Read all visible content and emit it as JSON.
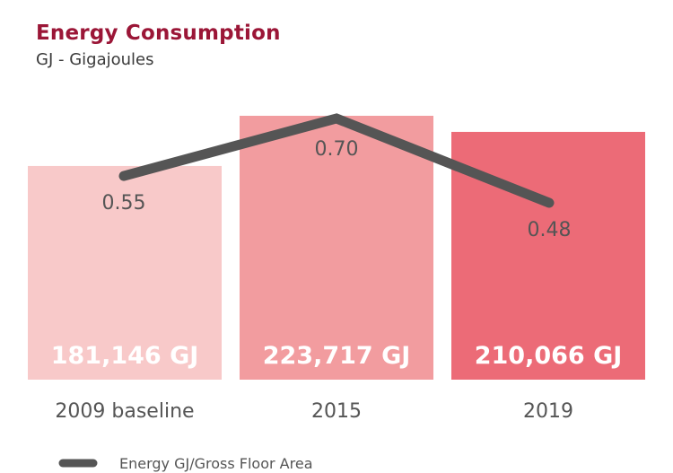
{
  "chart_data": {
    "type": "bar",
    "title": "Energy Consumption",
    "subtitle": "GJ - Gigajoules",
    "xlabel": "",
    "ylabel": "",
    "categories": [
      "2009 baseline",
      "2015",
      "2019"
    ],
    "series": [
      {
        "name": "Energy Consumption (GJ)",
        "kind": "bar",
        "values": [
          181146,
          223717,
          210066
        ],
        "labels": [
          "181,146 GJ",
          "223,717 GJ",
          "210,066 GJ"
        ],
        "colors": [
          "#f8c9c9",
          "#f29c9f",
          "#ec6b77"
        ]
      },
      {
        "name": "Energy GJ/Gross Floor Area",
        "kind": "line",
        "values": [
          0.55,
          0.7,
          0.48
        ],
        "labels": [
          "0.55",
          "0.70",
          "0.48"
        ],
        "color": "#555555"
      }
    ],
    "grid": false,
    "legend": {
      "position": "bottom-left",
      "entries": [
        "Energy GJ/Gross Floor Area"
      ]
    }
  },
  "colors": {
    "title": "#9b1637",
    "text": "#555555",
    "bar_label": "#ffffff"
  }
}
